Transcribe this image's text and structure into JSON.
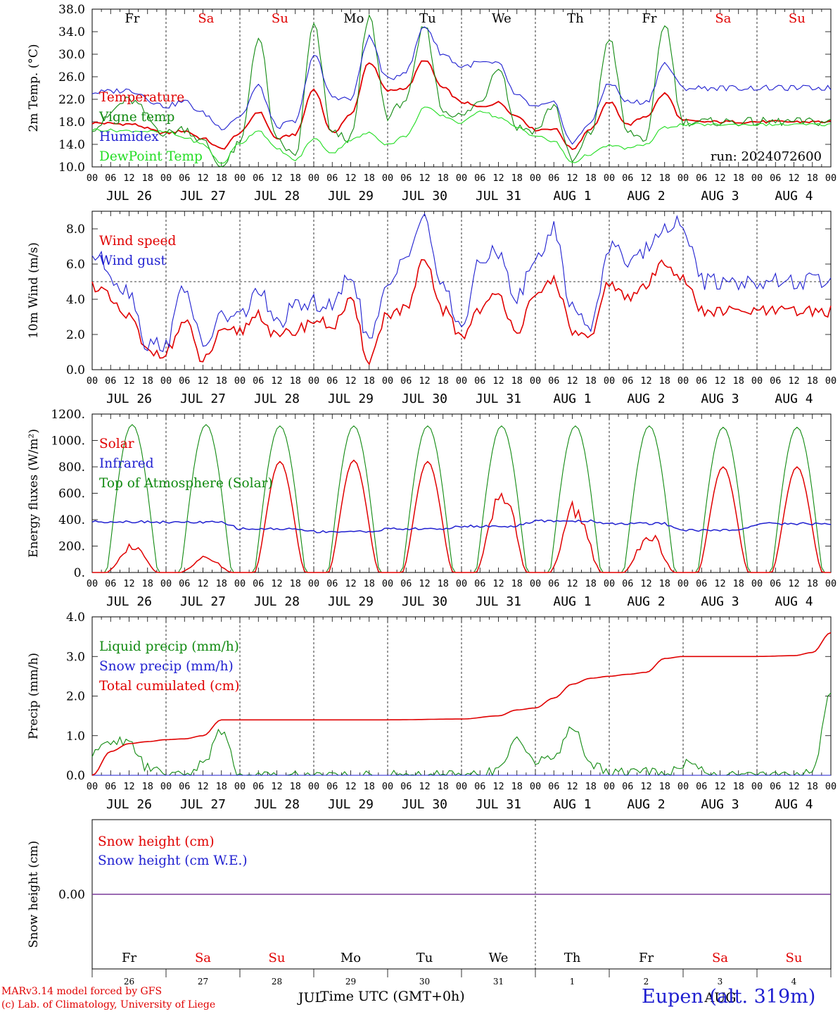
{
  "chart_data": [
    {
      "type": "line",
      "ylabel": "2m Temp. (°C)",
      "ylim": [
        10,
        38
      ],
      "yticks": [
        "10.0",
        "14.0",
        "18.0",
        "22.0",
        "26.0",
        "30.0",
        "34.0",
        "38.0"
      ],
      "x_hours": [
        0,
        12,
        24,
        30,
        36,
        42,
        48,
        54,
        60,
        66,
        72,
        78,
        84,
        90,
        96,
        102,
        108,
        114,
        120,
        126,
        132,
        138,
        144,
        150,
        156,
        162,
        168,
        174,
        180,
        186,
        192,
        198,
        204,
        210,
        216,
        222,
        228,
        234,
        240
      ],
      "series": [
        {
          "name": "Temperature",
          "color": "#e00000",
          "values": [
            17.8,
            17.6,
            16.0,
            16.4,
            15.0,
            13.2,
            16.0,
            19.8,
            15.0,
            15.8,
            23.8,
            16.0,
            19.2,
            28.6,
            23.5,
            24.0,
            29.0,
            24.0,
            21.5,
            20.6,
            21.4,
            19.0,
            16.6,
            16.8,
            13.2,
            16.8,
            21.5,
            17.5,
            19.0,
            23.0,
            18.2,
            18.0,
            18.0,
            18.0,
            18.0,
            18.0,
            18.0,
            18.0,
            18.0
          ]
        },
        {
          "name": "Vigne temp",
          "color": "#118a11",
          "values": [
            17.0,
            21.8,
            16.0,
            16.8,
            14.5,
            10.0,
            14.0,
            33.0,
            14.5,
            12.0,
            35.0,
            16.0,
            15.0,
            36.5,
            19.0,
            22.0,
            35.0,
            20.0,
            19.0,
            21.5,
            28.0,
            17.0,
            16.5,
            21.0,
            11.0,
            16.0,
            33.0,
            16.0,
            15.0,
            35.5,
            18.0,
            18.0,
            18.0,
            18.0,
            18.0,
            18.0,
            18.0,
            18.0,
            18.0
          ]
        },
        {
          "name": "Humidex",
          "color": "#1f1fd0",
          "values": [
            23.2,
            23.6,
            20.8,
            21.6,
            19.5,
            17.0,
            19.0,
            24.3,
            17.2,
            18.0,
            29.8,
            22.5,
            22.0,
            33.0,
            25.5,
            27.0,
            35.0,
            30.0,
            27.8,
            28.5,
            28.2,
            22.5,
            20.6,
            21.2,
            14.2,
            18.0,
            25.0,
            21.5,
            21.5,
            28.3,
            24.0,
            24.0,
            24.0,
            24.0,
            24.0,
            24.0,
            24.0,
            24.0,
            24.0
          ]
        },
        {
          "name": "DewPoint Temp",
          "color": "#22dd22",
          "values": [
            16.6,
            16.4,
            16.2,
            15.2,
            14.0,
            10.6,
            14.2,
            16.5,
            13.2,
            11.2,
            15.0,
            12.5,
            14.8,
            16.0,
            14.0,
            15.5,
            20.6,
            19.0,
            17.8,
            20.0,
            18.8,
            17.0,
            15.5,
            14.5,
            10.8,
            12.3,
            13.8,
            13.3,
            14.0,
            17.0,
            17.5,
            17.5,
            17.5,
            17.5,
            17.5,
            17.5,
            17.5,
            17.5,
            17.5
          ]
        }
      ],
      "day_labels": [
        "Fr",
        "Sa",
        "Su",
        "Mo",
        "Tu",
        "We",
        "Th",
        "Fr",
        "Sa",
        "Su"
      ],
      "annotation": "run: 2024072600"
    },
    {
      "type": "line",
      "ylabel": "10m Wind (m/s)",
      "ylim": [
        0,
        9
      ],
      "yticks": [
        "0.0",
        "2.0",
        "4.0",
        "6.0",
        "8.0"
      ],
      "reference_line": 5.0,
      "x_hours": [
        0,
        12,
        18,
        24,
        30,
        36,
        42,
        48,
        54,
        60,
        66,
        72,
        78,
        84,
        90,
        96,
        102,
        108,
        114,
        120,
        126,
        132,
        138,
        144,
        150,
        156,
        162,
        168,
        174,
        180,
        186,
        192,
        198,
        204,
        210,
        216,
        222,
        228,
        234,
        240
      ],
      "series": [
        {
          "name": "Wind speed",
          "color": "#e00000",
          "values": [
            4.8,
            3.0,
            1.0,
            1.0,
            2.7,
            0.5,
            2.0,
            2.2,
            3.2,
            1.8,
            2.2,
            2.8,
            2.5,
            3.8,
            0.6,
            3.2,
            3.4,
            6.1,
            3.4,
            1.9,
            3.5,
            4.2,
            2.3,
            4.0,
            5.2,
            2.2,
            1.7,
            5.0,
            4.0,
            4.8,
            6.2,
            5.2,
            3.3,
            3.3,
            3.3,
            3.3,
            3.3,
            3.3,
            3.3,
            3.3
          ]
        },
        {
          "name": "Wind gust",
          "color": "#1f1fd0",
          "values": [
            6.5,
            4.5,
            1.4,
            1.5,
            4.8,
            1.3,
            3.0,
            3.0,
            4.5,
            2.6,
            3.5,
            3.8,
            3.5,
            5.5,
            1.6,
            4.5,
            6.8,
            8.6,
            4.5,
            2.5,
            6.0,
            6.8,
            4.0,
            6.2,
            8.0,
            3.5,
            2.5,
            7.0,
            6.3,
            6.8,
            8.2,
            8.3,
            5.0,
            5.0,
            5.0,
            5.0,
            5.0,
            5.0,
            5.0,
            5.0
          ]
        }
      ]
    },
    {
      "type": "line",
      "ylabel": "Energy fluxes (W/m²)",
      "ylim": [
        0,
        1200
      ],
      "yticks": [
        "0.",
        "200.",
        "400.",
        "600.",
        "800.",
        "1000.",
        "1200."
      ],
      "diurnal_peak_hour": 13,
      "series": [
        {
          "name": "Solar",
          "color": "#e00000",
          "daily_peaks": [
            230,
            130,
            840,
            850,
            840,
            740,
            550,
            320,
            800,
            800
          ]
        },
        {
          "name": "Infrared",
          "color": "#1f1fd0",
          "daily_levels": [
            385,
            380,
            330,
            310,
            330,
            350,
            390,
            370,
            320,
            370
          ]
        },
        {
          "name": "Top of Atmosphere (Solar)",
          "color": "#118a11",
          "daily_peaks": [
            1120,
            1120,
            1110,
            1110,
            1110,
            1110,
            1110,
            1110,
            1100,
            1100
          ]
        }
      ]
    },
    {
      "type": "line",
      "ylabel": "Precip (mm/h)",
      "ylim": [
        0,
        4
      ],
      "yticks": [
        "0.0",
        "1.0",
        "2.0",
        "3.0",
        "4.0"
      ],
      "x_hours": [
        0,
        6,
        12,
        18,
        24,
        30,
        36,
        42,
        48,
        72,
        96,
        120,
        132,
        138,
        144,
        150,
        156,
        162,
        168,
        174,
        180,
        186,
        192,
        204,
        216,
        228,
        234,
        240
      ],
      "series": [
        {
          "name": "Liquid precip (mm/h)",
          "color": "#118a11",
          "values": [
            0.5,
            0.9,
            0.8,
            0.2,
            0.0,
            0.0,
            0.3,
            1.1,
            0.0,
            0.0,
            0.0,
            0.0,
            0.1,
            1.0,
            0.3,
            0.5,
            1.2,
            0.3,
            0.1,
            0.1,
            0.1,
            0.0,
            0.3,
            0.0,
            0.0,
            0.0,
            0.1,
            2.1
          ]
        },
        {
          "name": "Snow precip (mm/h)",
          "color": "#1f1fd0",
          "values": [
            0,
            0,
            0,
            0,
            0,
            0,
            0,
            0,
            0,
            0,
            0,
            0,
            0,
            0,
            0,
            0,
            0,
            0,
            0,
            0,
            0,
            0,
            0,
            0,
            0,
            0,
            0,
            0
          ]
        },
        {
          "name": "Total cumulated (cm)",
          "color": "#e00000",
          "values": [
            0.0,
            0.6,
            0.8,
            0.85,
            0.9,
            0.92,
            1.0,
            1.4,
            1.4,
            1.4,
            1.4,
            1.42,
            1.5,
            1.65,
            1.7,
            1.95,
            2.3,
            2.45,
            2.5,
            2.55,
            2.6,
            2.95,
            3.0,
            3.0,
            3.0,
            3.02,
            3.1,
            3.6
          ]
        }
      ]
    },
    {
      "type": "line",
      "ylabel": "Snow height (cm)",
      "ytick": "0.00",
      "series": [
        {
          "name": "Snow height (cm)",
          "color": "#e00000",
          "values": [
            0,
            0
          ]
        },
        {
          "name": "Snow height (cm W.E.)",
          "color": "#1f1fd0",
          "values": [
            0,
            0
          ]
        }
      ],
      "day_labels": [
        "Fr",
        "Sa",
        "Su",
        "Mo",
        "Tu",
        "We",
        "Th",
        "Fr",
        "Sa",
        "Su"
      ],
      "day_numbers": [
        "26",
        "27",
        "28",
        "29",
        "30",
        "31",
        "1",
        "2",
        "3",
        "4"
      ]
    }
  ],
  "x_axis": {
    "hour_ticks": [
      "00",
      "06",
      "12",
      "18"
    ],
    "date_labels": [
      "JUL 26",
      "JUL 27",
      "JUL 28",
      "JUL 29",
      "JUL 30",
      "JUL 31",
      "AUG  1",
      "AUG  2",
      "AUG  3",
      "AUG  4"
    ],
    "weekend_color": "#e00000",
    "weekday_color": "#000000",
    "weekend_days": [
      1,
      2,
      8,
      9
    ]
  },
  "footer": {
    "model": "MARv3.14 model forced by GFS",
    "lab": "(c) Lab. of Climatology, University of Liege",
    "x_title": "Time UTC (GMT+0h)",
    "month_left": "JUL",
    "month_right": "AUG",
    "station": "Eupen (alt. 319m)"
  }
}
